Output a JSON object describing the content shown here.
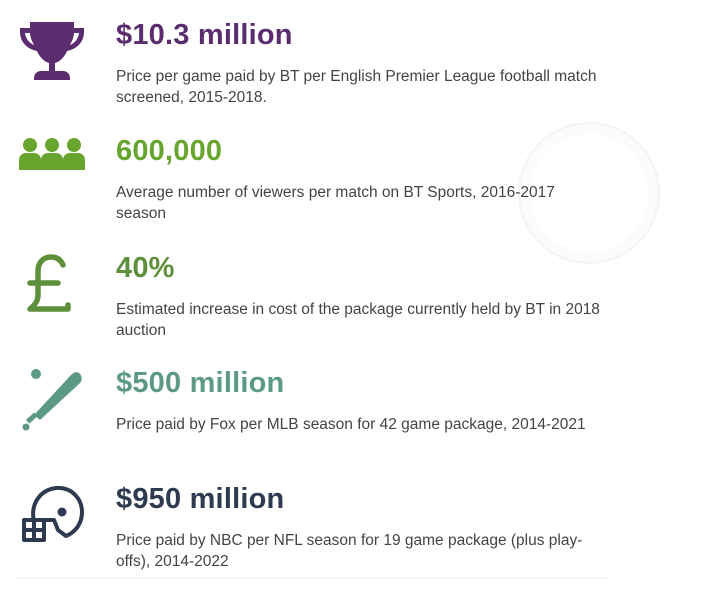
{
  "colors": {
    "purple": "#5b2d6f",
    "green": "#67a52e",
    "olive_green": "#5e8f3a",
    "teal": "#5c9a86",
    "navy": "#2d3a4f",
    "text": "#444444"
  },
  "stats": [
    {
      "icon": "trophy-icon",
      "figure": "$10.3 million",
      "description": "Price per game paid by BT per English Premier League football match screened, 2015-2018."
    },
    {
      "icon": "people-icon",
      "figure": "600,000",
      "description": "Average number of viewers per match on BT Sports, 2016-2017 season"
    },
    {
      "icon": "pound-icon",
      "figure": "40%",
      "description": "Estimated increase in cost of the package currently held by BT in 2018 auction"
    },
    {
      "icon": "baseball-bat-icon",
      "figure": "$500 million",
      "description": "Price paid by Fox per MLB season for 42 game package, 2014-2021"
    },
    {
      "icon": "football-helmet-icon",
      "figure": "$950 million",
      "description": "Price paid by NBC  per NFL season for 19 game  package  (plus play-offs), 2014-2022"
    }
  ]
}
